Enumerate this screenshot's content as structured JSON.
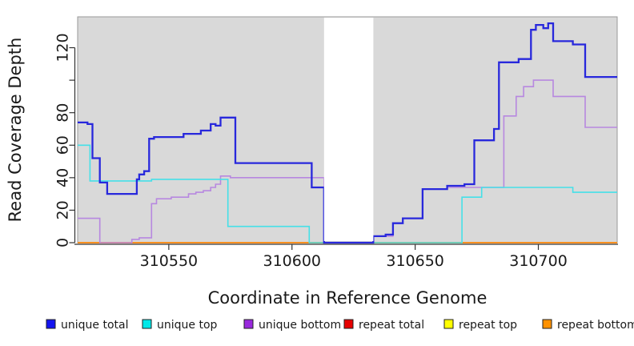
{
  "chart_data": {
    "type": "line",
    "step": true,
    "title": "",
    "xlabel": "Coordinate in Reference Genome",
    "ylabel": "Read Coverage Depth",
    "xlim": [
      310513,
      310732
    ],
    "ylim": [
      0,
      139
    ],
    "grid": false,
    "panel_bg": "#d9d9d9",
    "panel_border": "#999999",
    "axis_color": "#333333",
    "gap_region": {
      "from": 310613,
      "to": 310633,
      "color": "#ffffff"
    },
    "xticks": [
      {
        "v": 310550,
        "label": "310550"
      },
      {
        "v": 310600,
        "label": "310600"
      },
      {
        "v": 310650,
        "label": "310650"
      },
      {
        "v": 310700,
        "label": "310700"
      }
    ],
    "yticks": [
      {
        "v": 0,
        "label": "0"
      },
      {
        "v": 20,
        "label": "20"
      },
      {
        "v": 40,
        "label": "40"
      },
      {
        "v": 60,
        "label": "60"
      },
      {
        "v": 80,
        "label": "80"
      },
      {
        "v": 100,
        "label": ""
      },
      {
        "v": 120,
        "label": "120"
      }
    ],
    "series": [
      {
        "name": "unique total",
        "color": "#2828dc",
        "points": [
          [
            310513,
            74
          ],
          [
            310517,
            73
          ],
          [
            310519,
            52
          ],
          [
            310522,
            37
          ],
          [
            310525,
            30
          ],
          [
            310537,
            39
          ],
          [
            310538,
            42
          ],
          [
            310540,
            44
          ],
          [
            310542,
            64
          ],
          [
            310544,
            65
          ],
          [
            310556,
            67
          ],
          [
            310563,
            69
          ],
          [
            310567,
            73
          ],
          [
            310569,
            72
          ],
          [
            310571,
            77
          ],
          [
            310577,
            49
          ],
          [
            310608,
            34
          ],
          [
            310613,
            0
          ],
          [
            310633,
            4
          ],
          [
            310638,
            5
          ],
          [
            310641,
            12
          ],
          [
            310645,
            15
          ],
          [
            310653,
            33
          ],
          [
            310663,
            35
          ],
          [
            310670,
            36
          ],
          [
            310674,
            63
          ],
          [
            310682,
            70
          ],
          [
            310684,
            111
          ],
          [
            310692,
            113
          ],
          [
            310697,
            131
          ],
          [
            310699,
            134
          ],
          [
            310702,
            132
          ],
          [
            310704,
            135
          ],
          [
            310706,
            124
          ],
          [
            310714,
            122
          ],
          [
            310719,
            102
          ],
          [
            310732,
            102
          ]
        ]
      },
      {
        "name": "unique top",
        "color": "#45e0e8",
        "points": [
          [
            310513,
            60
          ],
          [
            310518,
            38
          ],
          [
            310543,
            39
          ],
          [
            310574,
            10
          ],
          [
            310607,
            0
          ],
          [
            310669,
            28
          ],
          [
            310677,
            34
          ],
          [
            310714,
            31
          ],
          [
            310732,
            31
          ]
        ]
      },
      {
        "name": "unique bottom",
        "color": "#b788e0",
        "points": [
          [
            310513,
            15
          ],
          [
            310522,
            0
          ],
          [
            310535,
            2
          ],
          [
            310538,
            3
          ],
          [
            310543,
            24
          ],
          [
            310545,
            27
          ],
          [
            310551,
            28
          ],
          [
            310558,
            30
          ],
          [
            310561,
            31
          ],
          [
            310564,
            32
          ],
          [
            310567,
            34
          ],
          [
            310569,
            36
          ],
          [
            310571,
            41
          ],
          [
            310575,
            40
          ],
          [
            310613,
            0
          ],
          [
            310633,
            4
          ],
          [
            310641,
            12
          ],
          [
            310645,
            15
          ],
          [
            310653,
            33
          ],
          [
            310663,
            34
          ],
          [
            310686,
            78
          ],
          [
            310691,
            90
          ],
          [
            310694,
            96
          ],
          [
            310698,
            100
          ],
          [
            310706,
            90
          ],
          [
            310719,
            71
          ],
          [
            310732,
            71
          ]
        ]
      },
      {
        "name": "repeat total",
        "color": "#e60000",
        "points": [
          [
            310513,
            0
          ],
          [
            310732,
            0
          ]
        ]
      },
      {
        "name": "repeat top",
        "color": "#ffff00",
        "points": [
          [
            310513,
            0
          ],
          [
            310732,
            0
          ]
        ]
      },
      {
        "name": "repeat bottom",
        "color": "#ff9020",
        "points": [
          [
            310513,
            0
          ],
          [
            310732,
            0
          ]
        ]
      }
    ],
    "draw_order": [
      "repeat total",
      "repeat top",
      "repeat bottom",
      "unique bottom",
      "unique top",
      "unique total"
    ],
    "legend": [
      {
        "label": "unique total",
        "color": "#1414f0"
      },
      {
        "label": "unique top",
        "color": "#00e8e8"
      },
      {
        "label": "unique bottom",
        "color": "#9929dd"
      },
      {
        "label": "repeat total",
        "color": "#e60000"
      },
      {
        "label": "repeat top",
        "color": "#ffff00"
      },
      {
        "label": "repeat bottom",
        "color": "#ff9100"
      }
    ],
    "legend_position": "bottom"
  }
}
